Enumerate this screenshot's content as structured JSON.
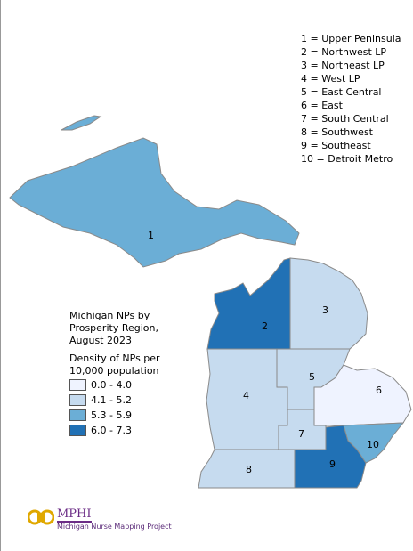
{
  "key": [
    "1 = Upper Peninsula",
    "2 = Northwest LP",
    "3 = Northeast LP",
    "4 = West LP",
    "5 = East Central",
    "6 = East",
    "7 = South Central",
    "8 = Southwest",
    "9 = Southeast",
    "10 = Detroit Metro"
  ],
  "legend": {
    "title": "Michigan NPs by Prosperity Region, August 2023",
    "subtitle": "Density of NPs per 10,000 population",
    "classes": [
      {
        "label": "0.0 - 4.0",
        "color": "#eff3ff"
      },
      {
        "label": "4.1 - 5.2",
        "color": "#c6dbef"
      },
      {
        "label": "5.3 - 5.9",
        "color": "#6baed6"
      },
      {
        "label": "6.0 - 7.3",
        "color": "#2171b5"
      }
    ]
  },
  "regions": [
    {
      "label": "1",
      "class": 2
    },
    {
      "label": "2",
      "class": 3
    },
    {
      "label": "3",
      "class": 1
    },
    {
      "label": "4",
      "class": 1
    },
    {
      "label": "5",
      "class": 1
    },
    {
      "label": "6",
      "class": 0
    },
    {
      "label": "7",
      "class": 1
    },
    {
      "label": "8",
      "class": 1
    },
    {
      "label": "9",
      "class": 3
    },
    {
      "label": "10",
      "class": 2
    }
  ],
  "logo": {
    "name": "MPHI",
    "caption": "Michigan Nurse Mapping Project"
  }
}
